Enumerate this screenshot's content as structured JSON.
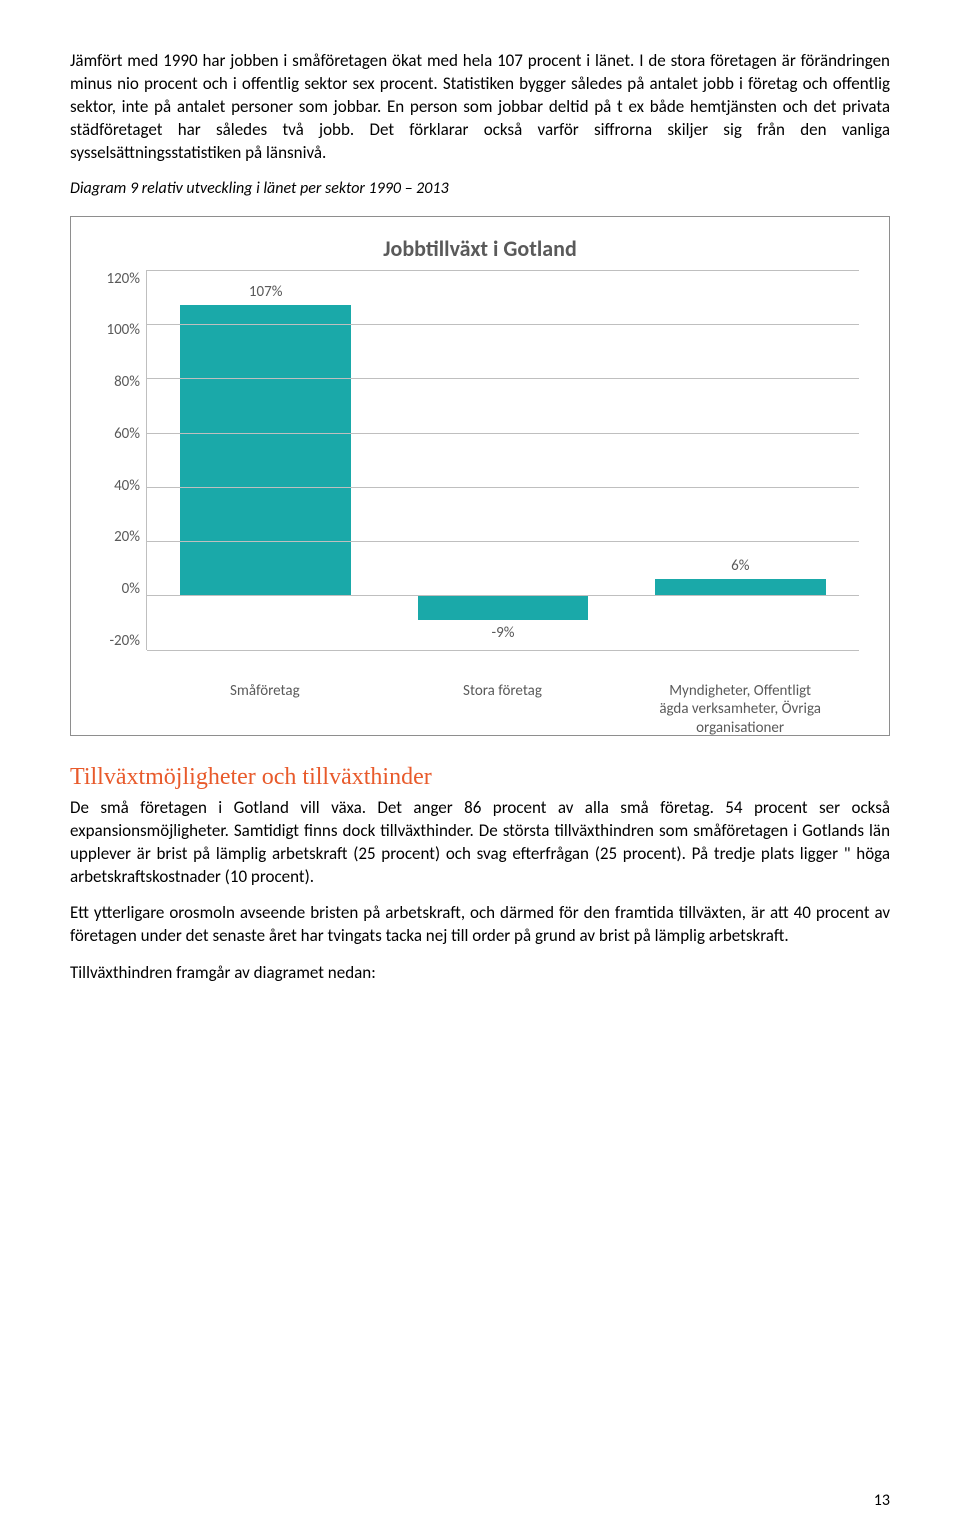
{
  "paragraphs": {
    "p1": "Jämfört med 1990 har jobben i småföretagen ökat med hela 107 procent i länet. I de stora företagen är förändringen minus nio procent och i offentlig sektor sex procent. Statistiken bygger således på antalet jobb i företag och offentlig sektor, inte på antalet personer som jobbar. En person som jobbar deltid på t ex både hemtjänsten och det privata städföretaget har således två jobb. Det förklarar också varför siffrorna skiljer sig från den vanliga sysselsättningsstatistiken på länsnivå.",
    "caption": "Diagram 9 relativ utveckling i länet per sektor 1990 – 2013",
    "p2": "De små företagen i Gotland vill växa. Det anger 86 procent av alla små företag. 54 procent ser också expansionsmöjligheter. Samtidigt finns dock tillväxthinder. De största tillväxthindren som småföretagen i Gotlands län upplever är brist på lämplig arbetskraft (25 procent) och svag efterfrågan (25 procent). På tredje plats ligger \" höga arbetskraftskostnader (10 procent).",
    "p3": "Ett ytterligare orosmoln avseende bristen på arbetskraft, och därmed för den framtida tillväxten, är att 40 procent av företagen under det senaste året har tvingats tacka nej till order på grund av brist på lämplig arbetskraft.",
    "p4": "Tillväxthindren framgår av diagramet nedan:"
  },
  "section_heading": "Tillväxtmöjligheter och tillväxthinder",
  "chart": {
    "title": "Jobbtillväxt i Gotland",
    "type": "bar",
    "bar_color": "#1aa9a9",
    "grid_color": "#bfbfbf",
    "text_color": "#5a5a5a",
    "y_min": -20,
    "y_max": 120,
    "y_step": 20,
    "y_ticks": [
      "120%",
      "100%",
      "80%",
      "60%",
      "40%",
      "20%",
      "0%",
      "-20%"
    ],
    "categories": [
      "Småföretag",
      "Stora företag",
      "Myndigheter, Offentligt\nägda verksamheter, Övriga\norganisationer"
    ],
    "values": [
      107,
      -9,
      6
    ],
    "value_labels": [
      "107%",
      "-9%",
      "6%"
    ]
  },
  "page_number": "13"
}
